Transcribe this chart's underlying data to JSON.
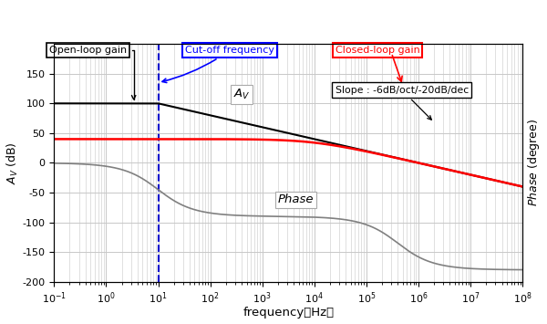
{
  "xlabel": "frequency（Hz）",
  "ylabel_left": "$A_V$ (dB)",
  "ylabel_right": "$Phase$ (degree)",
  "xlim": [
    0.1,
    100000000.0
  ],
  "ylim": [
    -200,
    200
  ],
  "yticks": [
    -200,
    -150,
    -100,
    -50,
    0,
    50,
    100,
    150
  ],
  "xtick_vals": [
    0.1,
    1.0,
    10.0,
    100.0,
    1000.0,
    10000.0,
    100000.0,
    1000000.0,
    10000000.0,
    100000000.0
  ],
  "xtick_labels": [
    "$10^{-1}$",
    "$10^{0}$",
    "$10^{1}$",
    "$10^{2}$",
    "$10^{3}$",
    "$10^{4}$",
    "$10^{5}$",
    "$10^{6}$",
    "$10^{7}$",
    "$10^{8}$"
  ],
  "open_loop_gain_dB": 100,
  "closed_loop_gain_dB": 40,
  "cutoff_freq": 10,
  "background_color": "#ffffff",
  "grid_color": "#c8c8c8",
  "open_loop_color": "#000000",
  "closed_loop_color": "#ff0000",
  "phase_color": "#808080",
  "cutoff_line_color": "#0000cc",
  "annotation_open_loop": "Open-loop gain",
  "annotation_cutoff": "Cut-off frequency",
  "annotation_closed_loop": "Closed-loop gain",
  "annotation_slope": "Slope : -6dB/oct/-20dB/dec",
  "label_Av": "$A_V$",
  "label_phase": "Phase"
}
